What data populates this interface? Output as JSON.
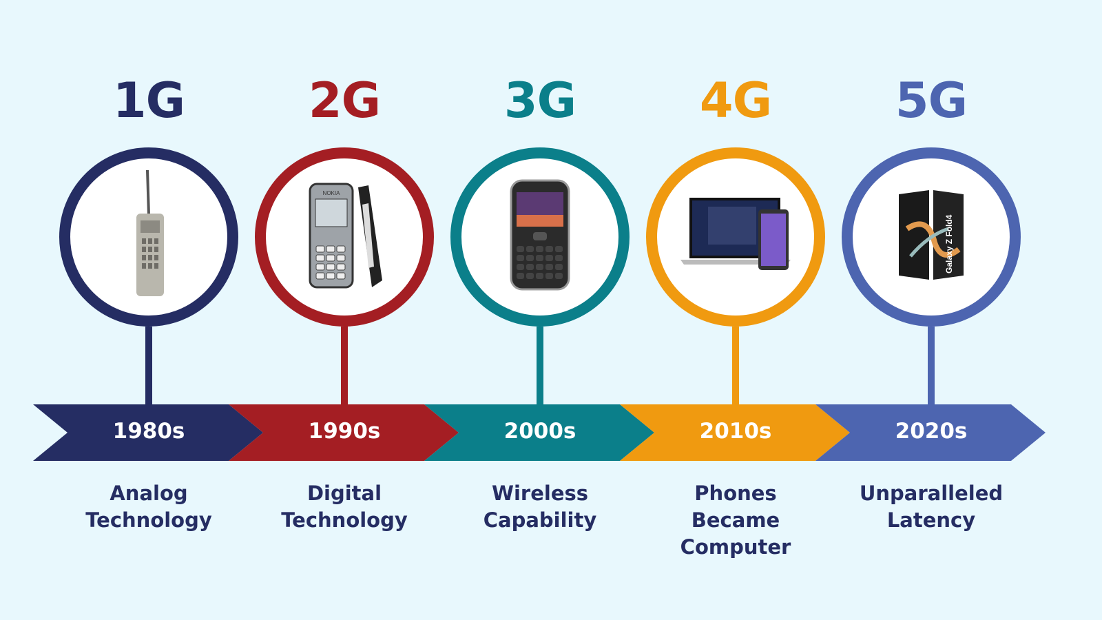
{
  "timeline": [
    {
      "generation": "1G",
      "decade": "1980s",
      "caption": [
        "Analog",
        "Technology"
      ],
      "color": "#252d63",
      "device_icon": "brick-phone-icon"
    },
    {
      "generation": "2G",
      "decade": "1990s",
      "caption": [
        "Digital",
        "Technology"
      ],
      "color": "#a41e23",
      "device_icon": "feature-phone-icon"
    },
    {
      "generation": "3G",
      "decade": "2000s",
      "caption": [
        "Wireless",
        "Capability"
      ],
      "color": "#0b7f8a",
      "device_icon": "blackberry-phone-icon"
    },
    {
      "generation": "4G",
      "decade": "2010s",
      "caption": [
        "Phones",
        "Became",
        "Computer"
      ],
      "color": "#f09a10",
      "device_icon": "laptop-and-smartphone-icon"
    },
    {
      "generation": "5G",
      "decade": "2020s",
      "caption": [
        "Unparalleled",
        "Latency"
      ],
      "color": "#4d65b0",
      "device_icon": "foldable-phone-icon"
    }
  ],
  "background_color": "#e8f8fd"
}
